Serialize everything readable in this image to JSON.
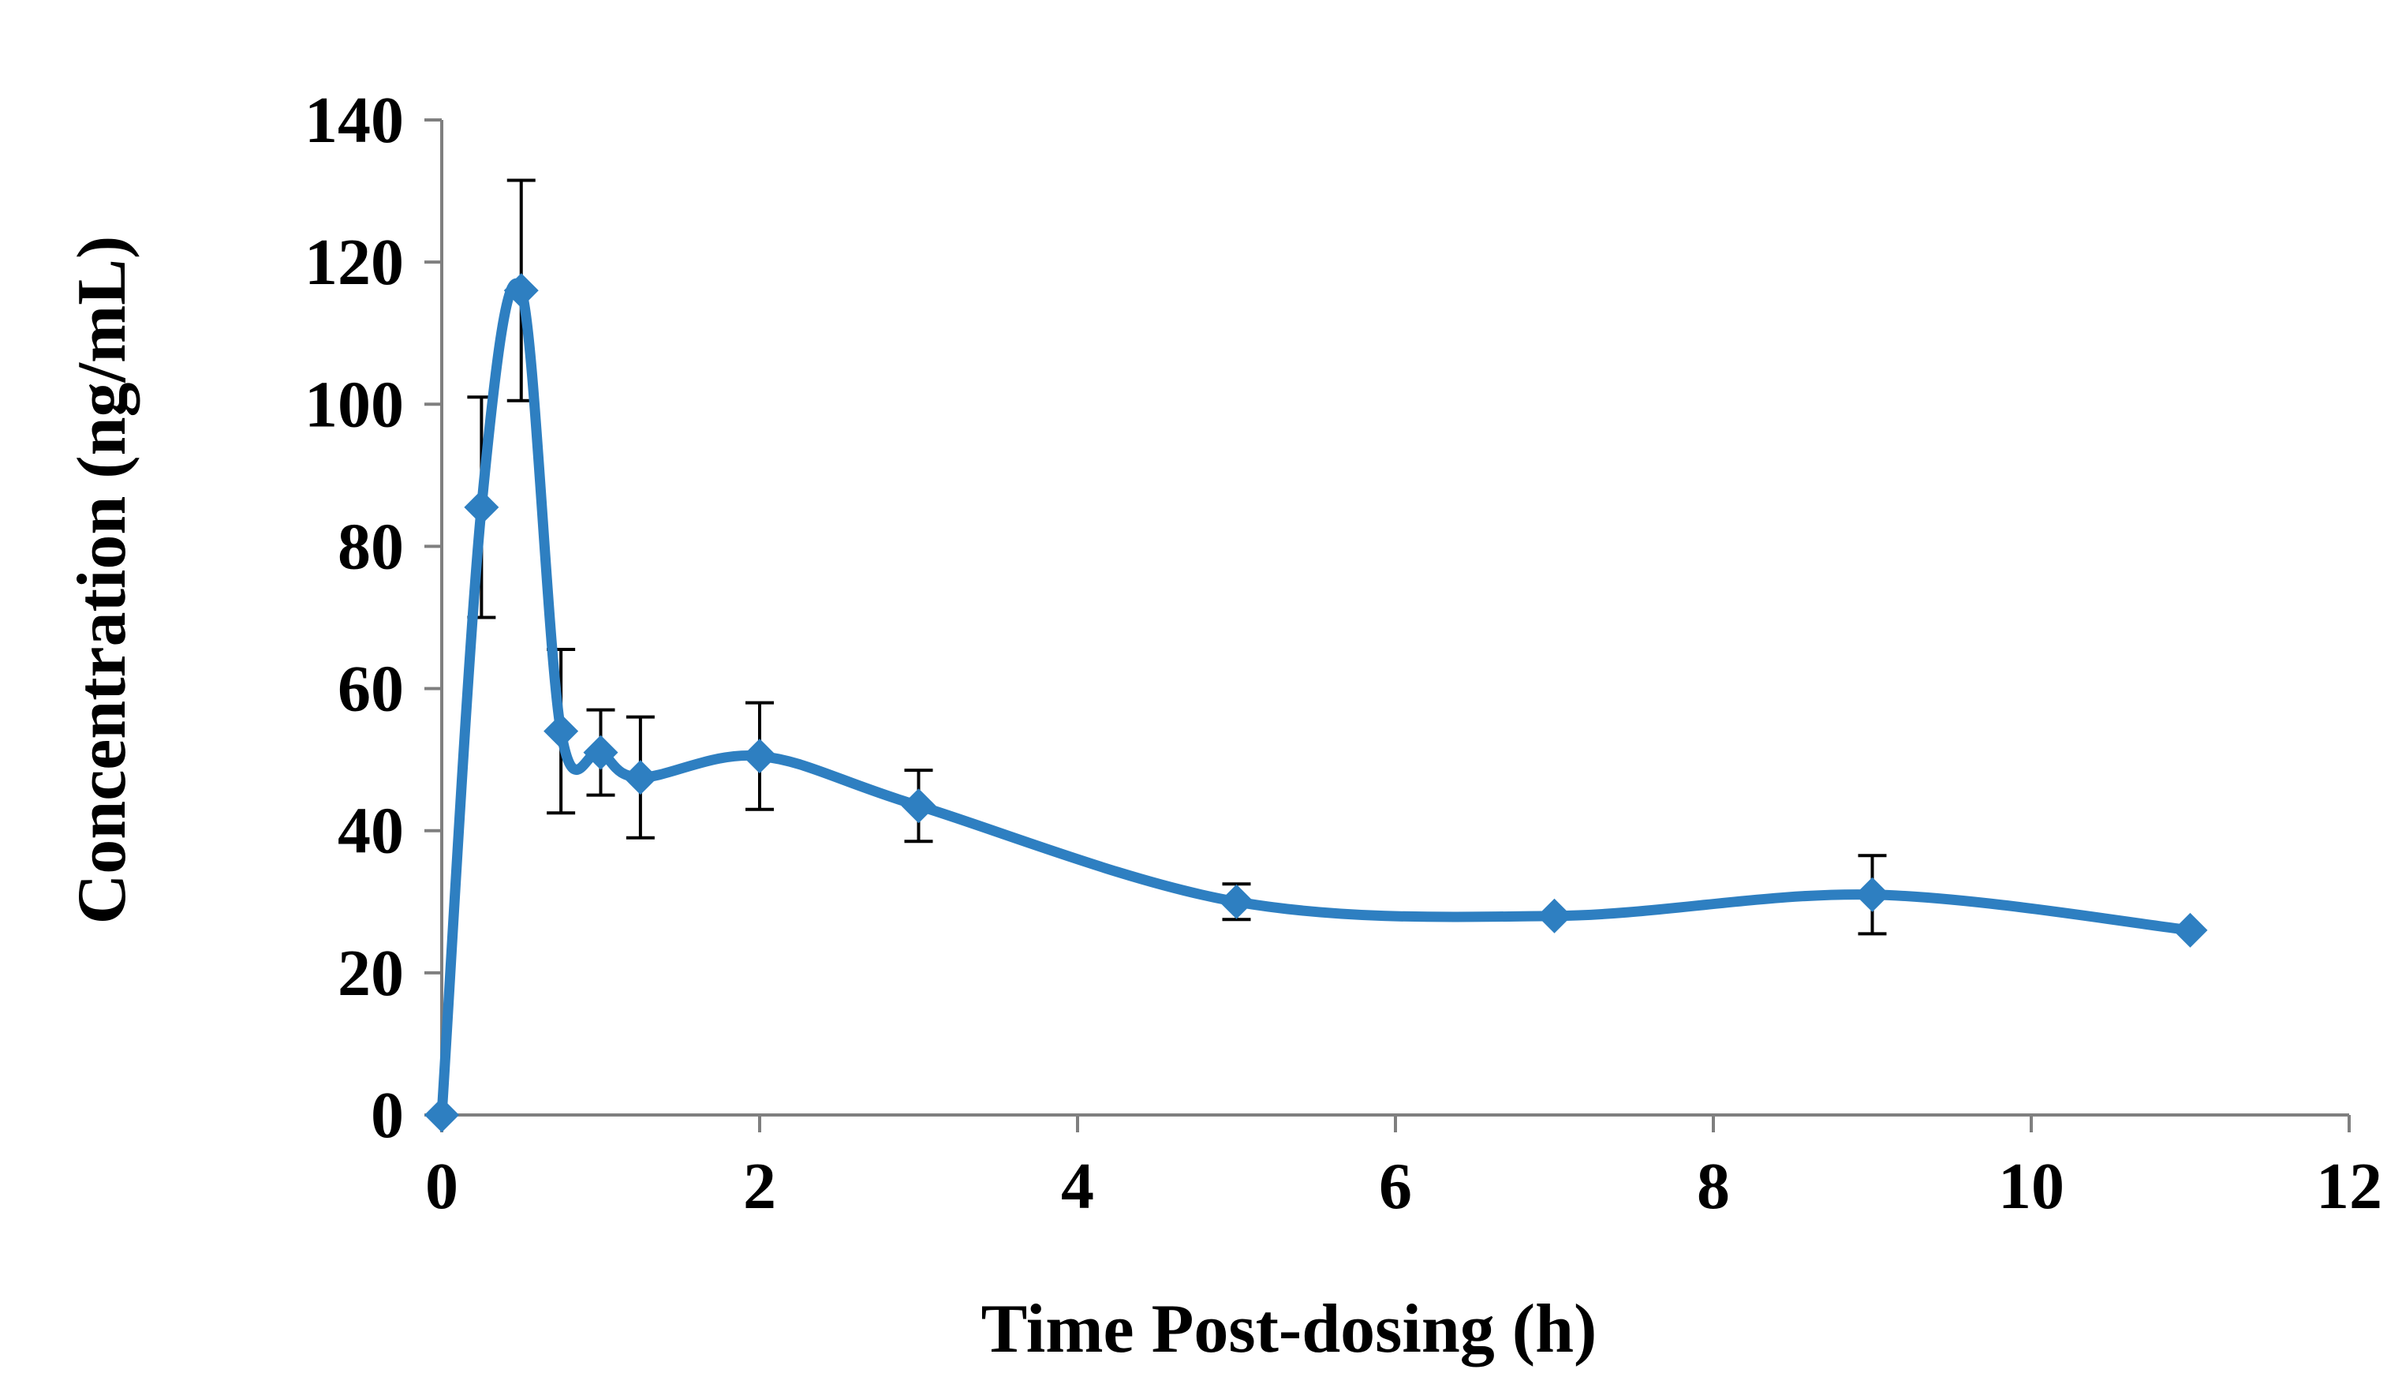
{
  "chart_data": {
    "type": "line",
    "title": "",
    "xlabel": "Time Post-dosing (h)",
    "ylabel": "Concentration  (ng/mL)",
    "xlim": [
      0,
      12
    ],
    "ylim": [
      0,
      140
    ],
    "xticks": [
      0,
      2,
      4,
      6,
      8,
      10,
      12
    ],
    "yticks": [
      0,
      20,
      40,
      60,
      80,
      100,
      120,
      140
    ],
    "grid": false,
    "legend": "none",
    "series": [
      {
        "name": "Concentration",
        "color": "#2e7fc1",
        "marker": "diamond",
        "smooth": true,
        "x": [
          0,
          0.25,
          0.5,
          0.75,
          1,
          1.25,
          2,
          3,
          5,
          7,
          9,
          11
        ],
        "y": [
          0,
          85.5,
          116,
          54,
          51,
          47.5,
          50.5,
          43.5,
          30,
          28,
          31,
          26
        ],
        "error": [
          0,
          15.5,
          15.5,
          11.5,
          6,
          8.5,
          7.5,
          5,
          2.5,
          0,
          5.5,
          0
        ]
      }
    ]
  }
}
